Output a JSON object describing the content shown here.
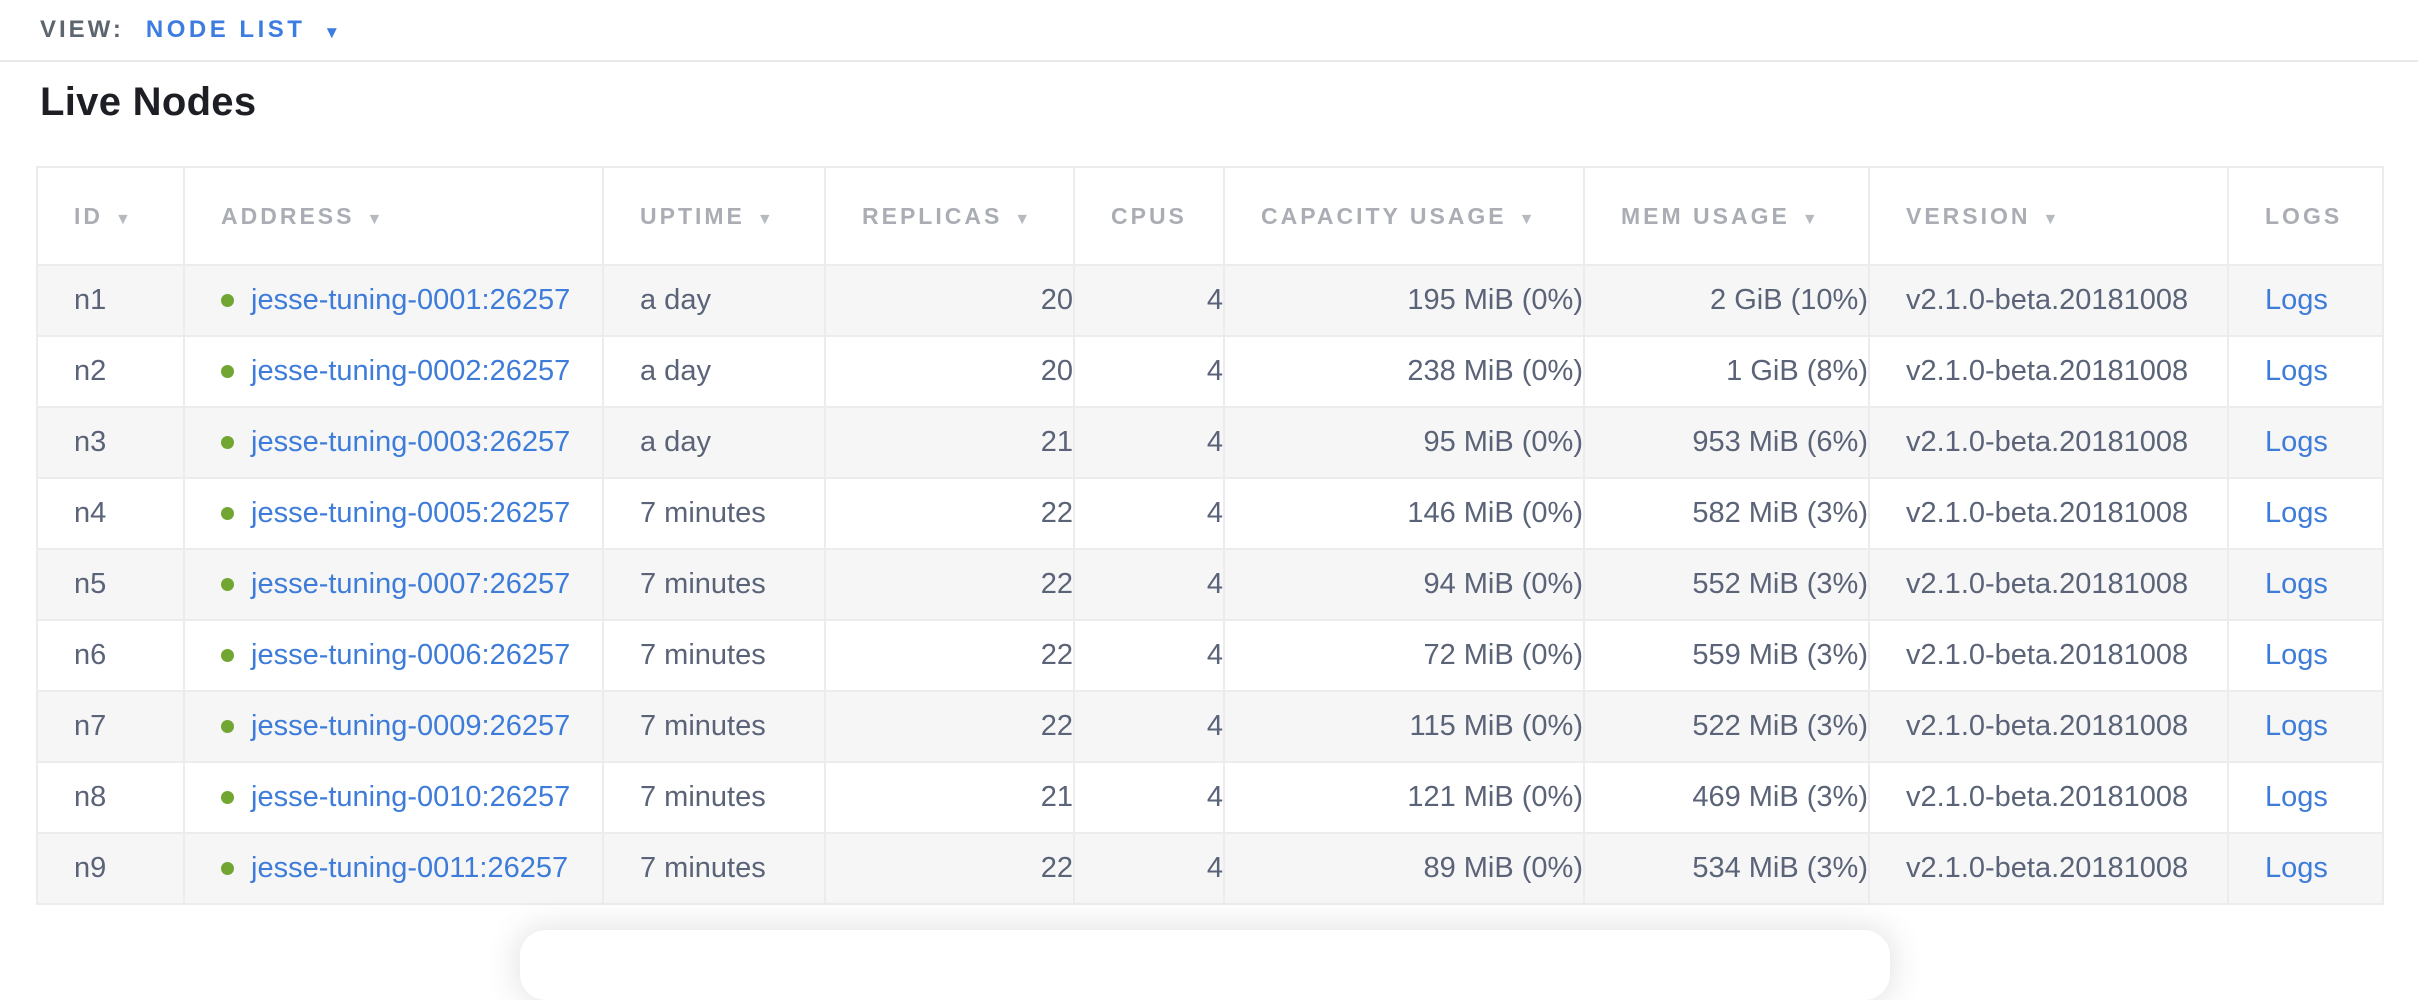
{
  "view_bar": {
    "label": "VIEW:",
    "selected": "NODE LIST",
    "caret_icon": "▼"
  },
  "page": {
    "title": "Live Nodes"
  },
  "table": {
    "columns": [
      {
        "key": "id",
        "label": "ID",
        "sort_icon": "▼"
      },
      {
        "key": "address",
        "label": "ADDRESS",
        "sort_icon": "▼"
      },
      {
        "key": "uptime",
        "label": "UPTIME",
        "sort_icon": "▼"
      },
      {
        "key": "replicas",
        "label": "REPLICAS",
        "sort_icon": "▼"
      },
      {
        "key": "cpus",
        "label": "CPUS",
        "sort_icon": ""
      },
      {
        "key": "capacity",
        "label": "CAPACITY USAGE",
        "sort_icon": "▼"
      },
      {
        "key": "mem",
        "label": "MEM USAGE",
        "sort_icon": "▼"
      },
      {
        "key": "version",
        "label": "VERSION",
        "sort_icon": "▼"
      },
      {
        "key": "logs",
        "label": "LOGS",
        "sort_icon": ""
      }
    ],
    "rows": [
      {
        "id": "n1",
        "address": "jesse-tuning-0001:26257",
        "status": "live",
        "uptime": "a day",
        "replicas": "20",
        "cpus": "4",
        "capacity": "195 MiB (0%)",
        "mem": "2 GiB (10%)",
        "version": "v2.1.0-beta.20181008",
        "logs": "Logs"
      },
      {
        "id": "n2",
        "address": "jesse-tuning-0002:26257",
        "status": "live",
        "uptime": "a day",
        "replicas": "20",
        "cpus": "4",
        "capacity": "238 MiB (0%)",
        "mem": "1 GiB (8%)",
        "version": "v2.1.0-beta.20181008",
        "logs": "Logs"
      },
      {
        "id": "n3",
        "address": "jesse-tuning-0003:26257",
        "status": "live",
        "uptime": "a day",
        "replicas": "21",
        "cpus": "4",
        "capacity": "95 MiB (0%)",
        "mem": "953 MiB (6%)",
        "version": "v2.1.0-beta.20181008",
        "logs": "Logs"
      },
      {
        "id": "n4",
        "address": "jesse-tuning-0005:26257",
        "status": "live",
        "uptime": "7 minutes",
        "replicas": "22",
        "cpus": "4",
        "capacity": "146 MiB (0%)",
        "mem": "582 MiB (3%)",
        "version": "v2.1.0-beta.20181008",
        "logs": "Logs"
      },
      {
        "id": "n5",
        "address": "jesse-tuning-0007:26257",
        "status": "live",
        "uptime": "7 minutes",
        "replicas": "22",
        "cpus": "4",
        "capacity": "94 MiB (0%)",
        "mem": "552 MiB (3%)",
        "version": "v2.1.0-beta.20181008",
        "logs": "Logs"
      },
      {
        "id": "n6",
        "address": "jesse-tuning-0006:26257",
        "status": "live",
        "uptime": "7 minutes",
        "replicas": "22",
        "cpus": "4",
        "capacity": "72 MiB (0%)",
        "mem": "559 MiB (3%)",
        "version": "v2.1.0-beta.20181008",
        "logs": "Logs"
      },
      {
        "id": "n7",
        "address": "jesse-tuning-0009:26257",
        "status": "live",
        "uptime": "7 minutes",
        "replicas": "22",
        "cpus": "4",
        "capacity": "115 MiB (0%)",
        "mem": "522 MiB (3%)",
        "version": "v2.1.0-beta.20181008",
        "logs": "Logs"
      },
      {
        "id": "n8",
        "address": "jesse-tuning-0010:26257",
        "status": "live",
        "uptime": "7 minutes",
        "replicas": "21",
        "cpus": "4",
        "capacity": "121 MiB (0%)",
        "mem": "469 MiB (3%)",
        "version": "v2.1.0-beta.20181008",
        "logs": "Logs"
      },
      {
        "id": "n9",
        "address": "jesse-tuning-0011:26257",
        "status": "live",
        "uptime": "7 minutes",
        "replicas": "22",
        "cpus": "4",
        "capacity": "89 MiB (0%)",
        "mem": "534 MiB (3%)",
        "version": "v2.1.0-beta.20181008",
        "logs": "Logs"
      }
    ]
  },
  "colors": {
    "link_blue": "#3e7cd9",
    "accent_blue": "#3d7ce0",
    "status_green": "#71a633",
    "header_gray": "#aaaeb4",
    "cell_text": "#5a6377"
  }
}
